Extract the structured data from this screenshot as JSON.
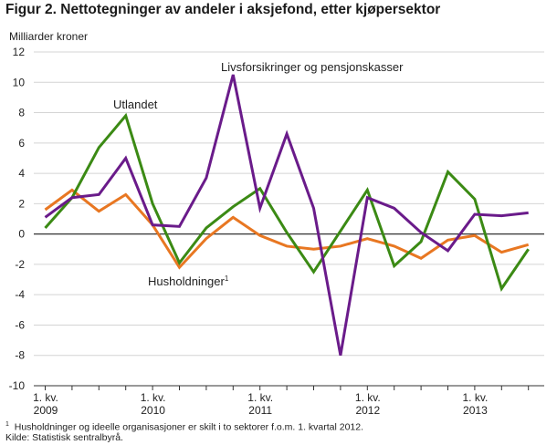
{
  "title": "Figur 2. Nettotegninger av andeler i aksjefond, etter kjøpersektor",
  "footnote": "Husholdninger og ideelle organisasjoner er skilt i to sektorer f.o.m. 1. kvartal 2012.",
  "footnote_marker": "1",
  "source": "Kilde: Statistisk sentralbyrå.",
  "chart_data": {
    "type": "line",
    "ylabel": "Milliarder kroner",
    "ylim": [
      -10,
      12
    ],
    "yticks": [
      -10,
      -8,
      -6,
      -4,
      -2,
      0,
      2,
      4,
      6,
      8,
      10,
      12
    ],
    "grid": true,
    "x": [
      "2009Q1",
      "2009Q2",
      "2009Q3",
      "2009Q4",
      "2010Q1",
      "2010Q2",
      "2010Q3",
      "2010Q4",
      "2011Q1",
      "2011Q2",
      "2011Q3",
      "2011Q4",
      "2012Q1",
      "2012Q2",
      "2012Q3",
      "2012Q4",
      "2013Q1",
      "2013Q2",
      "2013Q3"
    ],
    "xtick_labels": [
      {
        "index": 0,
        "line1": "1. kv.",
        "line2": "2009"
      },
      {
        "index": 4,
        "line1": "1. kv.",
        "line2": "2010"
      },
      {
        "index": 8,
        "line1": "1. kv.",
        "line2": "2011"
      },
      {
        "index": 12,
        "line1": "1. kv.",
        "line2": "2012"
      },
      {
        "index": 16,
        "line1": "1. kv.",
        "line2": "2013"
      }
    ],
    "series": [
      {
        "name": "Livsforsikringer og pensjonskasser",
        "color": "#6a1b8a",
        "values": [
          1.1,
          2.4,
          2.6,
          5.0,
          0.6,
          0.5,
          3.7,
          10.5,
          1.7,
          6.6,
          1.7,
          -8.0,
          2.4,
          1.7,
          0.1,
          -1.1,
          1.3,
          1.2,
          1.4
        ]
      },
      {
        "name": "Utlandet",
        "color": "#3b8a14",
        "values": [
          0.4,
          2.4,
          5.7,
          7.8,
          2.0,
          -1.9,
          0.4,
          1.8,
          3.0,
          0.1,
          -2.5,
          0.2,
          2.9,
          -2.1,
          -0.5,
          4.1,
          2.3,
          -3.6,
          -1.0
        ]
      },
      {
        "name": "Husholdninger",
        "footnote_marker": "1",
        "color": "#e87722",
        "values": [
          1.6,
          2.9,
          1.5,
          2.6,
          0.6,
          -2.2,
          -0.3,
          1.1,
          -0.1,
          -0.8,
          -1.0,
          -0.8,
          -0.3,
          -0.8,
          -1.6,
          -0.4,
          -0.1,
          -1.2,
          -0.7
        ]
      }
    ]
  }
}
